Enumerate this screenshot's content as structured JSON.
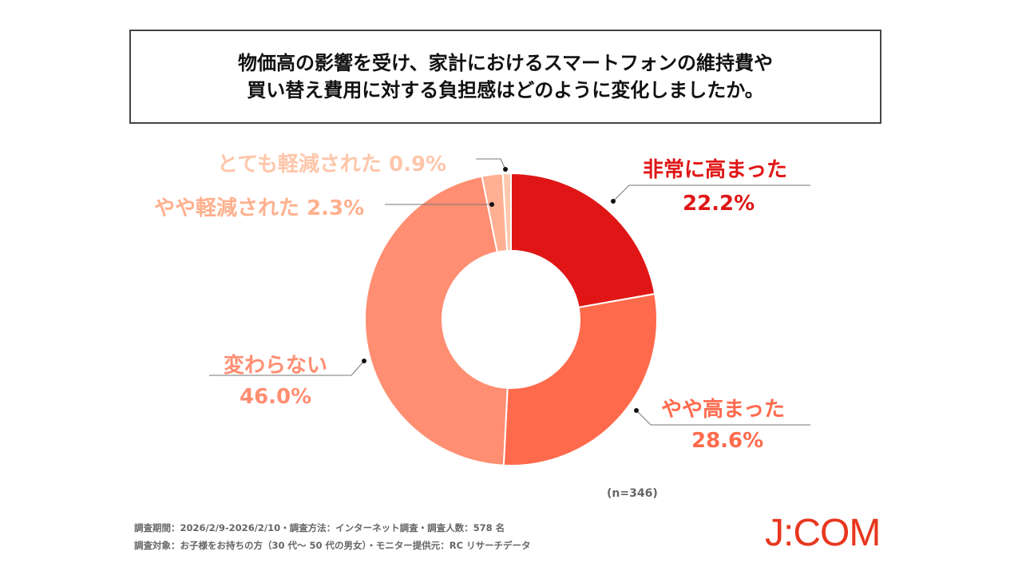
{
  "title": {
    "line1": "物価高の影響を受け、家計におけるスマートフォンの維持費や",
    "line2": "買い替え費用に対する負担感はどのように変化しましたか。"
  },
  "chart_data": {
    "type": "pie",
    "donut": true,
    "categories": [
      "非常に高まった",
      "やや高まった",
      "変わらない",
      "やや軽減された",
      "とても軽減された"
    ],
    "values": [
      22.2,
      28.6,
      46.0,
      2.3,
      0.9
    ],
    "value_labels": [
      "22.2%",
      "28.6%",
      "46.0%",
      "2.3%",
      "0.9%"
    ],
    "colors": [
      "#e01616",
      "#ff6a4d",
      "#ff8e72",
      "#ffb093",
      "#ffc8ad"
    ],
    "label_colors": [
      "#e01616",
      "#ff6a4d",
      "#ff8e72",
      "#ffb08e",
      "#ffc6aa"
    ],
    "start": "top",
    "direction": "clockwise"
  },
  "sample": "(n=346)",
  "footer": {
    "line1": "調査期間：2026/2/9-2026/2/10・調査方法：インターネット調査・調査人数：578 名",
    "line2": "調査対象：お子様をお持ちの方（30 代～ 50 代の男女）・モニター提供元：RC リサーチデータ"
  },
  "logo": "J:COM"
}
